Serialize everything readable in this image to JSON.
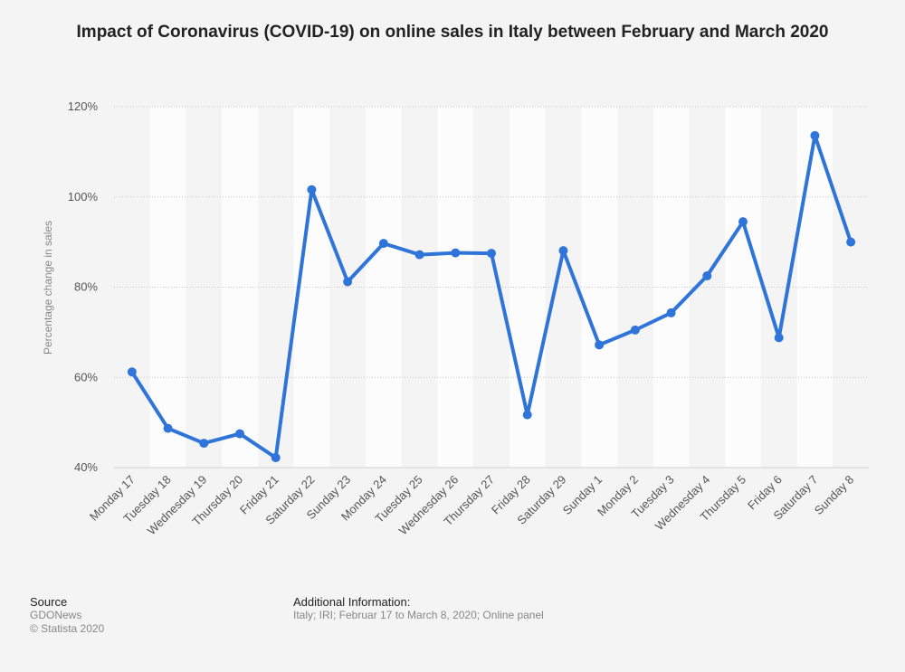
{
  "chart_data": {
    "type": "line",
    "title": "Impact of Coronavirus (COVID-19) on online sales in Italy between February and March 2020",
    "ylabel": "Percentage change in sales",
    "xlabel": "",
    "ylim": [
      40,
      120
    ],
    "yticks": [
      "40%",
      "60%",
      "80%",
      "100%",
      "120%"
    ],
    "grid": true,
    "line_color": "#2f74d8",
    "categories": [
      "Monday 17",
      "Tuesday 18",
      "Wednesday 19",
      "Thursday 20",
      "Friday 21",
      "Saturday 22",
      "Sunday 23",
      "Monday 24",
      "Tuesday 25",
      "Wednesday 26",
      "Thursday 27",
      "Friday 28",
      "Saturday 29",
      "Sunday 1",
      "Monday 2",
      "Tuesday 3",
      "Wednesday 4",
      "Thursday 5",
      "Friday 6",
      "Saturday 7",
      "Sunday 8"
    ],
    "values": [
      61.2,
      48.7,
      45.4,
      47.5,
      42.2,
      101.6,
      81.2,
      89.7,
      87.2,
      87.6,
      87.5,
      51.7,
      88.1,
      67.2,
      70.5,
      74.3,
      82.5,
      94.5,
      68.8,
      113.6,
      90.0
    ]
  },
  "footer": {
    "source_label": "Source",
    "source_name": "GDONews",
    "copyright": "© Statista 2020",
    "additional_label": "Additional Information:",
    "additional_text": "Italy; IRI; Februar 17 to March 8, 2020; Online panel"
  }
}
